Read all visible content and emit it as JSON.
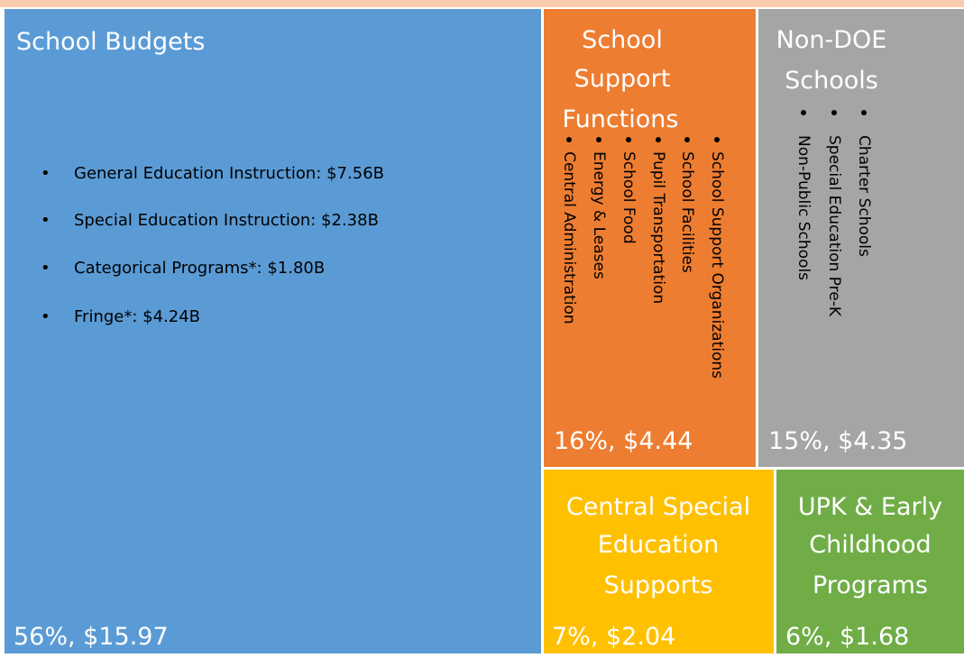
{
  "blocks": [
    {
      "title": [
        "School Budgets"
      ],
      "items": [
        "General Education Instruction: $7.56B",
        "Special Education Instruction: $2.38B",
        "Categorical Programs*: $1.80B",
        "Fringe*: $4.24B"
      ],
      "label": "56%, $15.97"
    },
    {
      "title": [
        "School",
        "Support",
        "Functions"
      ],
      "items": [
        "School Support Organizations",
        "School Facilities",
        "Pupil Transportation",
        "School Food",
        "Energy & Leases",
        "Central Administration"
      ],
      "label": "16%, $4.44"
    },
    {
      "title": [
        "Non-DOE",
        "Schools"
      ],
      "items": [
        "Charter Schools",
        "Special Education Pre-K",
        "Non-Public Schools"
      ],
      "label": "15%, $4.35"
    },
    {
      "title": [
        "Central Special",
        "Education",
        "Supports"
      ],
      "label": "7%, $2.04"
    },
    {
      "title": [
        "UPK & Early",
        "Childhood",
        "Programs"
      ],
      "label": "6%, $1.68"
    }
  ]
}
